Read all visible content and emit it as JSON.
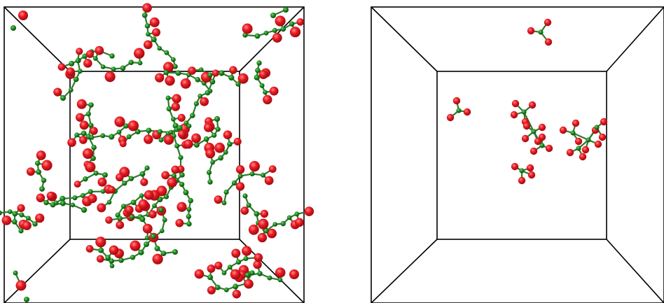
{
  "colors": {
    "background": "#ffffff",
    "box_line": "#000000",
    "oxygen_atom": "#e8121c",
    "carbon_atom": "#1c8a1c",
    "bond": "#2f7a2f"
  },
  "panels": [
    {
      "id": "left-panel",
      "description_tag": "dense-molecular-cluster-box",
      "atom_density": "high"
    },
    {
      "id": "right-panel",
      "description_tag": "sparse-molecular-cluster-box",
      "atom_density": "low"
    }
  ]
}
